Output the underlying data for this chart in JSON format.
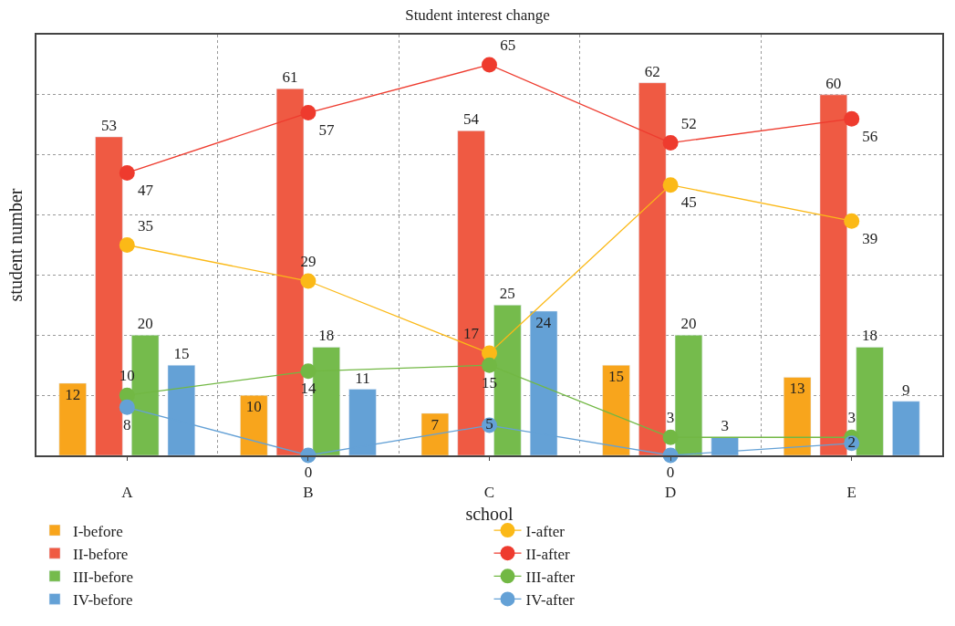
{
  "chart_data": {
    "type": "bar",
    "title": "Student interest change",
    "xlabel": "school",
    "ylabel": "student number",
    "categories": [
      "A",
      "B",
      "C",
      "D",
      "E"
    ],
    "series": [
      {
        "name": "I-before",
        "color": "#f8a51c",
        "values": [
          12,
          10,
          7,
          15,
          13
        ]
      },
      {
        "name": "II-before",
        "color": "#ef5a43",
        "values": [
          53,
          61,
          54,
          62,
          60
        ]
      },
      {
        "name": "III-before",
        "color": "#75bb4c",
        "values": [
          20,
          18,
          25,
          20,
          18
        ]
      },
      {
        "name": "IV-before",
        "color": "#64a1d6",
        "values": [
          15,
          11,
          24,
          3,
          9
        ]
      },
      {
        "name": "I-after",
        "type": "line",
        "color": "#fbb917",
        "values": [
          35,
          29,
          17,
          45,
          39
        ]
      },
      {
        "name": "II-after",
        "type": "line",
        "color": "#ee3b2e",
        "values": [
          47,
          57,
          65,
          52,
          56
        ]
      },
      {
        "name": "III-after",
        "type": "line",
        "color": "#72b844",
        "values": [
          10,
          14,
          15,
          3,
          3
        ]
      },
      {
        "name": "IV-after",
        "type": "line",
        "color": "#64a1d6",
        "values": [
          8,
          0,
          5,
          0,
          2
        ]
      }
    ],
    "ylim": [
      0,
      70
    ],
    "yticks": [
      {
        "value": 10,
        "label": null
      },
      {
        "value": 20,
        "label": null
      },
      {
        "value": 30,
        "label": null
      },
      {
        "value": 40,
        "label": null
      },
      {
        "value": 50,
        "label": null
      },
      {
        "value": 60,
        "label": null
      }
    ],
    "tick_labels": "x",
    "grid": true,
    "legend": "bottom",
    "marker": "circle",
    "data_labels": true
  }
}
